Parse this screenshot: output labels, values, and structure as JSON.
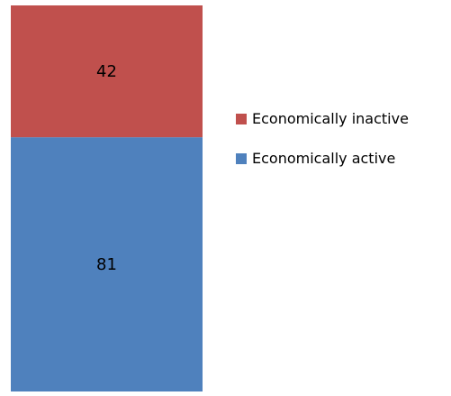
{
  "chart_data": {
    "type": "bar",
    "stacked": true,
    "categories": [
      ""
    ],
    "series": [
      {
        "name": "Economically active",
        "values": [
          81
        ],
        "color": "#4F81BD"
      },
      {
        "name": "Economically inactive",
        "values": [
          42
        ],
        "color": "#C0504D"
      }
    ],
    "legend": {
      "position": "right",
      "order": [
        "Economically inactive",
        "Economically active"
      ]
    },
    "grid": false,
    "axes_visible": false,
    "data_labels": true
  }
}
